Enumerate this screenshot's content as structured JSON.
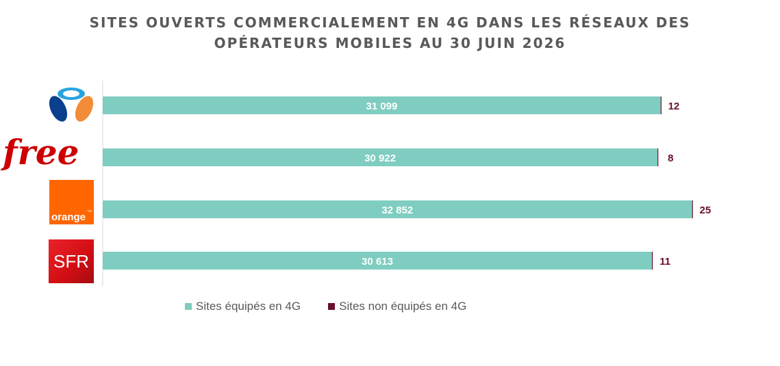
{
  "title_lines": [
    "SITES OUVERTS COMMERCIALEMENT EN 4G DANS LES RÉSEAUX DES",
    "OPÉRATEURS MOBILES AU 30 JUIN 2026"
  ],
  "logos": {
    "bouygues": {
      "icon": "bouygues-telecom-logo"
    },
    "free": {
      "icon": "free-logo",
      "text": "free"
    },
    "orange": {
      "icon": "orange-logo",
      "text": "orange",
      "tm": "™"
    },
    "sfr": {
      "icon": "sfr-logo",
      "text": "SFR"
    }
  },
  "legend": {
    "equipped": "Sites équipés en 4G",
    "not_equipped": "Sites non équipés en 4G"
  },
  "colors": {
    "equipped": "#7ECDC0",
    "not_equipped": "#6B0D2E",
    "title": "#595959",
    "free_red": "#CC0000",
    "orange": "#FF6600",
    "sfr_red": "#D40F14",
    "bouygues_blue": "#0A3F8E",
    "bouygues_orange": "#F28C38",
    "bouygues_lightblue": "#27A4DE"
  },
  "chart_data": {
    "type": "bar",
    "orientation": "horizontal",
    "stacked": true,
    "categories": [
      "Bouygues Telecom",
      "Free",
      "Orange",
      "SFR"
    ],
    "series": [
      {
        "name": "Sites équipés en 4G",
        "values": [
          31099,
          30922,
          32852,
          30613
        ],
        "labels": [
          "31 099",
          "30 922",
          "32 852",
          "30 613"
        ]
      },
      {
        "name": "Sites non équipés en 4G",
        "values": [
          12,
          8,
          25,
          11
        ],
        "labels": [
          "12",
          "8",
          "25",
          "11"
        ]
      }
    ],
    "xlim": [
      0,
      33400
    ],
    "legend_position": "bottom"
  }
}
